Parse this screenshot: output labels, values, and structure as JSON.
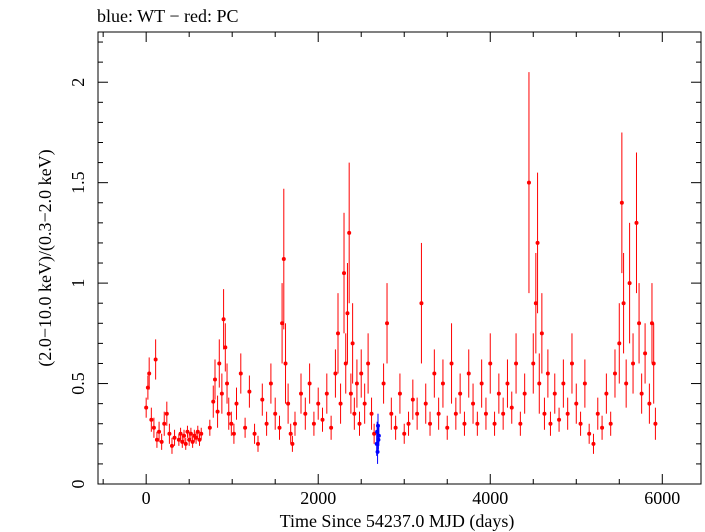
{
  "chart_data": {
    "type": "scatter",
    "title": "blue: WT − red: PC",
    "xlabel": "Time Since 54237.0 MJD (days)",
    "ylabel": "(2.0−10.0 keV)/(0.3−2.0 keV)",
    "xlim": [
      -560,
      6450
    ],
    "ylim": [
      0,
      2.25
    ],
    "x_ticks": [
      0,
      2000,
      4000,
      6000
    ],
    "x_tick_labels": [
      "0",
      "2000",
      "4000",
      "6000"
    ],
    "y_ticks": [
      0,
      0.5,
      1,
      1.5,
      2
    ],
    "y_tick_labels": [
      "0",
      "0.5",
      "1",
      "1.5",
      "2"
    ],
    "grid": false,
    "series": [
      {
        "color": "#ff0000",
        "points": [
          [
            0,
            0.38,
            0.05
          ],
          [
            20,
            0.48,
            0.06
          ],
          [
            35,
            0.55,
            0.08
          ],
          [
            60,
            0.32,
            0.06
          ],
          [
            90,
            0.28,
            0.05
          ],
          [
            110,
            0.62,
            0.1
          ],
          [
            125,
            0.22,
            0.04
          ],
          [
            150,
            0.26,
            0.05
          ],
          [
            180,
            0.21,
            0.04
          ],
          [
            210,
            0.3,
            0.06
          ],
          [
            240,
            0.35,
            0.06
          ],
          [
            270,
            0.25,
            0.05
          ],
          [
            300,
            0.19,
            0.04
          ],
          [
            330,
            0.23,
            0.04
          ],
          [
            380,
            0.22,
            0.03
          ],
          [
            400,
            0.25,
            0.03
          ],
          [
            420,
            0.21,
            0.03
          ],
          [
            440,
            0.24,
            0.03
          ],
          [
            460,
            0.2,
            0.03
          ],
          [
            480,
            0.26,
            0.03
          ],
          [
            500,
            0.22,
            0.03
          ],
          [
            520,
            0.25,
            0.03
          ],
          [
            540,
            0.21,
            0.03
          ],
          [
            560,
            0.24,
            0.03
          ],
          [
            580,
            0.23,
            0.03
          ],
          [
            600,
            0.26,
            0.03
          ],
          [
            620,
            0.22,
            0.03
          ],
          [
            640,
            0.25,
            0.03
          ],
          [
            740,
            0.28,
            0.04
          ],
          [
            780,
            0.41,
            0.08
          ],
          [
            800,
            0.52,
            0.1
          ],
          [
            830,
            0.36,
            0.08
          ],
          [
            850,
            0.6,
            0.12
          ],
          [
            880,
            0.45,
            0.1
          ],
          [
            900,
            0.82,
            0.15
          ],
          [
            920,
            0.68,
            0.12
          ],
          [
            940,
            0.5,
            0.1
          ],
          [
            960,
            0.35,
            0.08
          ],
          [
            990,
            0.3,
            0.06
          ],
          [
            1020,
            0.25,
            0.05
          ],
          [
            1050,
            0.4,
            0.08
          ],
          [
            1100,
            0.55,
            0.1
          ],
          [
            1150,
            0.28,
            0.05
          ],
          [
            1200,
            0.46,
            0.08
          ],
          [
            1260,
            0.25,
            0.05
          ],
          [
            1300,
            0.2,
            0.04
          ],
          [
            1350,
            0.42,
            0.08
          ],
          [
            1400,
            0.3,
            0.06
          ],
          [
            1450,
            0.5,
            0.1
          ],
          [
            1500,
            0.35,
            0.08
          ],
          [
            1550,
            0.28,
            0.06
          ],
          [
            1580,
            0.8,
            0.2
          ],
          [
            1600,
            1.12,
            0.35
          ],
          [
            1620,
            0.6,
            0.2
          ],
          [
            1650,
            0.4,
            0.1
          ],
          [
            1680,
            0.25,
            0.05
          ],
          [
            1700,
            0.2,
            0.04
          ],
          [
            1730,
            0.3,
            0.06
          ],
          [
            1800,
            0.45,
            0.1
          ],
          [
            1850,
            0.35,
            0.08
          ],
          [
            1900,
            0.5,
            0.1
          ],
          [
            1950,
            0.3,
            0.06
          ],
          [
            2000,
            0.4,
            0.08
          ],
          [
            2050,
            0.32,
            0.06
          ],
          [
            2100,
            0.45,
            0.1
          ],
          [
            2150,
            0.28,
            0.06
          ],
          [
            2200,
            0.55,
            0.12
          ],
          [
            2230,
            0.75,
            0.2
          ],
          [
            2260,
            0.4,
            0.1
          ],
          [
            2300,
            1.05,
            0.3
          ],
          [
            2320,
            0.6,
            0.15
          ],
          [
            2340,
            0.85,
            0.25
          ],
          [
            2360,
            1.25,
            0.35
          ],
          [
            2380,
            0.45,
            0.1
          ],
          [
            2400,
            0.7,
            0.2
          ],
          [
            2420,
            0.35,
            0.08
          ],
          [
            2450,
            0.5,
            0.12
          ],
          [
            2480,
            0.3,
            0.06
          ],
          [
            2500,
            0.55,
            0.12
          ],
          [
            2540,
            0.4,
            0.1
          ],
          [
            2580,
            0.6,
            0.15
          ],
          [
            2620,
            0.35,
            0.08
          ],
          [
            2650,
            0.25,
            0.05
          ],
          [
            2760,
            0.5,
            0.1
          ],
          [
            2800,
            0.8,
            0.2
          ],
          [
            2850,
            0.35,
            0.08
          ],
          [
            2900,
            0.28,
            0.06
          ],
          [
            2950,
            0.45,
            0.1
          ],
          [
            3000,
            0.25,
            0.05
          ],
          [
            3050,
            0.3,
            0.06
          ],
          [
            3100,
            0.42,
            0.1
          ],
          [
            3150,
            0.35,
            0.08
          ],
          [
            3200,
            0.9,
            0.3
          ],
          [
            3250,
            0.4,
            0.1
          ],
          [
            3300,
            0.3,
            0.06
          ],
          [
            3350,
            0.55,
            0.12
          ],
          [
            3400,
            0.35,
            0.08
          ],
          [
            3450,
            0.5,
            0.12
          ],
          [
            3500,
            0.28,
            0.06
          ],
          [
            3550,
            0.6,
            0.2
          ],
          [
            3600,
            0.35,
            0.08
          ],
          [
            3650,
            0.45,
            0.1
          ],
          [
            3700,
            0.3,
            0.06
          ],
          [
            3750,
            0.55,
            0.12
          ],
          [
            3800,
            0.4,
            0.1
          ],
          [
            3850,
            0.3,
            0.06
          ],
          [
            3900,
            0.5,
            0.12
          ],
          [
            3950,
            0.35,
            0.08
          ],
          [
            4000,
            0.6,
            0.15
          ],
          [
            4050,
            0.3,
            0.06
          ],
          [
            4100,
            0.45,
            0.1
          ],
          [
            4150,
            0.35,
            0.08
          ],
          [
            4200,
            0.5,
            0.12
          ],
          [
            4250,
            0.38,
            0.08
          ],
          [
            4300,
            0.6,
            0.15
          ],
          [
            4350,
            0.3,
            0.06
          ],
          [
            4400,
            0.45,
            0.1
          ],
          [
            4450,
            1.5,
            0.55
          ],
          [
            4500,
            0.6,
            0.15
          ],
          [
            4530,
            0.9,
            0.25
          ],
          [
            4550,
            1.2,
            0.35
          ],
          [
            4570,
            0.5,
            0.15
          ],
          [
            4600,
            0.75,
            0.2
          ],
          [
            4630,
            0.35,
            0.08
          ],
          [
            4670,
            0.55,
            0.12
          ],
          [
            4700,
            0.3,
            0.06
          ],
          [
            4750,
            0.45,
            0.1
          ],
          [
            4800,
            0.32,
            0.06
          ],
          [
            4850,
            0.5,
            0.12
          ],
          [
            4900,
            0.35,
            0.08
          ],
          [
            4950,
            0.6,
            0.15
          ],
          [
            5000,
            0.4,
            0.1
          ],
          [
            5050,
            0.3,
            0.06
          ],
          [
            5100,
            0.5,
            0.12
          ],
          [
            5150,
            0.25,
            0.05
          ],
          [
            5200,
            0.2,
            0.05
          ],
          [
            5250,
            0.35,
            0.08
          ],
          [
            5300,
            0.28,
            0.06
          ],
          [
            5350,
            0.45,
            0.1
          ],
          [
            5400,
            0.3,
            0.06
          ],
          [
            5450,
            0.55,
            0.12
          ],
          [
            5500,
            0.7,
            0.2
          ],
          [
            5530,
            1.4,
            0.35
          ],
          [
            5550,
            0.9,
            0.25
          ],
          [
            5580,
            0.5,
            0.12
          ],
          [
            5620,
            1.0,
            0.3
          ],
          [
            5660,
            0.6,
            0.15
          ],
          [
            5700,
            1.3,
            0.35
          ],
          [
            5730,
            0.8,
            0.2
          ],
          [
            5760,
            0.45,
            0.1
          ],
          [
            5800,
            0.65,
            0.15
          ],
          [
            5850,
            0.4,
            0.1
          ],
          [
            5880,
            0.8,
            0.2
          ],
          [
            5900,
            0.6,
            0.2
          ],
          [
            5920,
            0.3,
            0.08
          ]
        ]
      },
      {
        "color": "#0000ff",
        "points": [
          [
            2680,
            0.2,
            0.06
          ],
          [
            2685,
            0.26,
            0.05
          ],
          [
            2690,
            0.16,
            0.06
          ],
          [
            2695,
            0.29,
            0.06
          ],
          [
            2700,
            0.22,
            0.05
          ],
          [
            2705,
            0.24,
            0.05
          ]
        ]
      }
    ]
  }
}
